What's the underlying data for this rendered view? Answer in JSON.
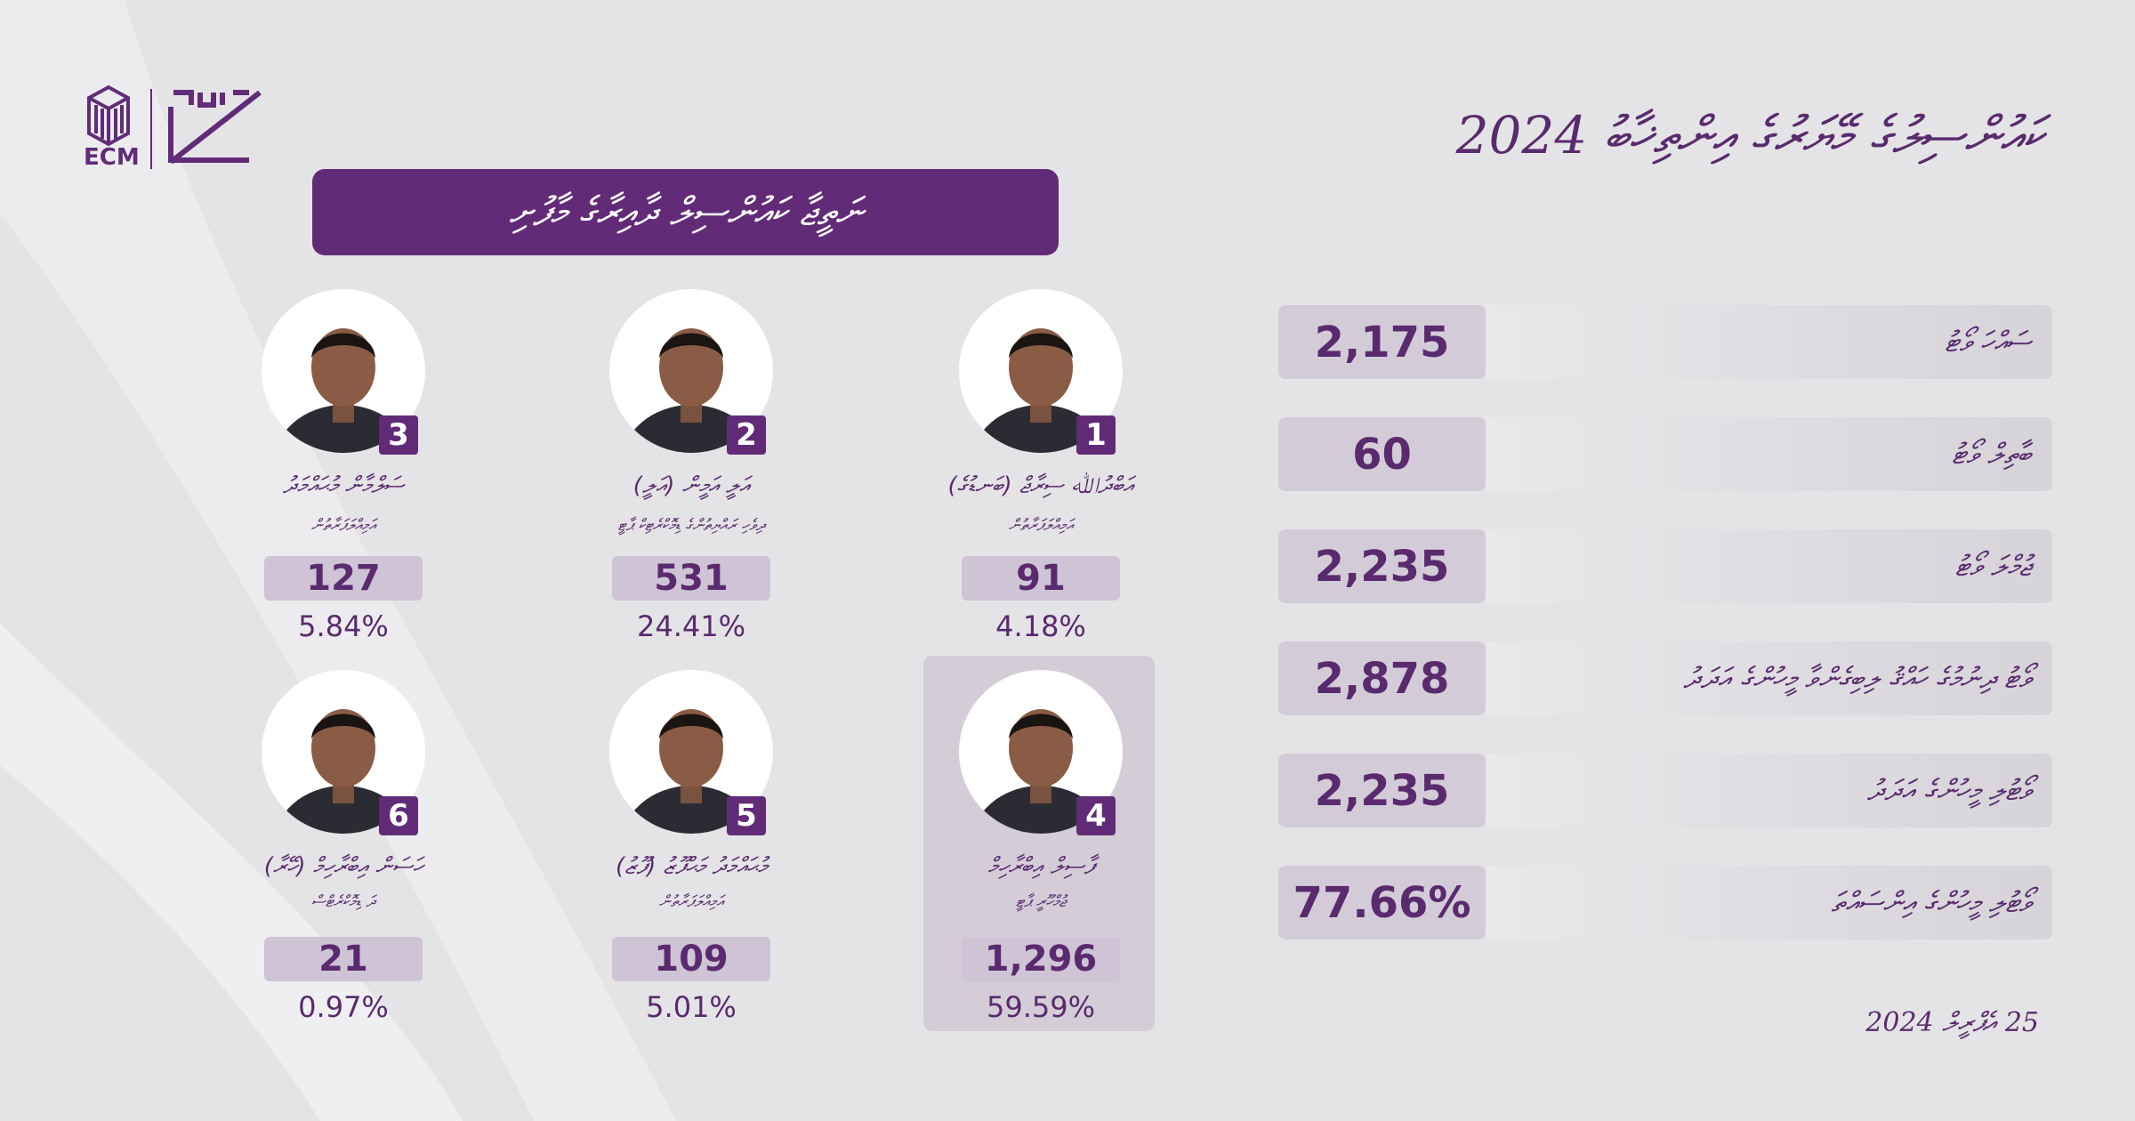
{
  "header": {
    "title": "ކައުންސިލުގެ މޭޔަރުގެ އިންތިޚާބު 2024",
    "banner": "ނަތީޖާ ކައުންސިލް ދާއިރާގެ މާފުށި",
    "logo_text": "ECM"
  },
  "candidates": [
    {
      "number": 1,
      "name": "އަބްދުﷲ ސިރާޖް (ބަނޑުގެ)",
      "affiliation": "އަމިއްލަފަރާތުން",
      "votes": "91",
      "percent": "4.18%"
    },
    {
      "number": 2,
      "name": "އަލީ އަމީން (އަލީ)",
      "affiliation": "ދިވެހި ރައްޔިތުންގެ ޑިމޮކްރެޓިކް ޕާޓީ",
      "votes": "531",
      "percent": "24.41%"
    },
    {
      "number": 3,
      "name": "ސަލްމާން މުޙައްމަދު",
      "affiliation": "އަމިއްލަފަރާތުން",
      "votes": "127",
      "percent": "5.84%"
    },
    {
      "number": 4,
      "name": "ފާސިލް އިބްރާހިމް",
      "affiliation": "ޖުމްހޫރީ ޕާޓީ",
      "votes": "1,296",
      "percent": "59.59%"
    },
    {
      "number": 5,
      "name": "މުޙައްމަދު މަޙްފޫޒު (ފޫޒު)",
      "affiliation": "އަމިއްލަފަރާތުން",
      "votes": "109",
      "percent": "5.01%"
    },
    {
      "number": 6,
      "name": "ހަސަން އިބްރާހިމް (ހޭރާ)",
      "affiliation": "ދަ ޑިމޮކްރެޓްސް",
      "votes": "21",
      "percent": "0.97%"
    }
  ],
  "stats": [
    {
      "label": "ސައްހަ ވޯޓު",
      "value": "2,175"
    },
    {
      "label": "ބާތިލް ވޯޓު",
      "value": "60"
    },
    {
      "label": "ޖުމްލަ ވޯޓު",
      "value": "2,235"
    },
    {
      "label": "ވޯޓު ދިނުމުގެ ހައްޤު ލިބިގެންވާ މީހުންގެ އަދަދު",
      "value": "2,878"
    },
    {
      "label": "ވޯޓުލި މީހުންގެ އަދަދު",
      "value": "2,235"
    },
    {
      "label": "ވޯޓުލި މީހުންގެ އިންސައްތަ",
      "value": "77.66%"
    }
  ],
  "date": "25 އެޕްރީލް 2024"
}
